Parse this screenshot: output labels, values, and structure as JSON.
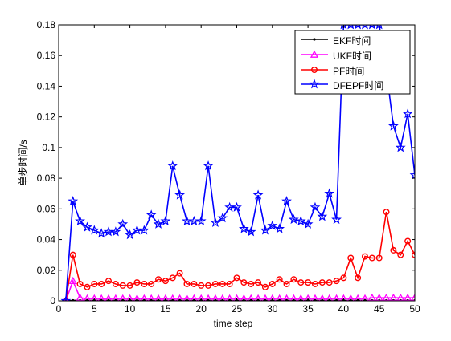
{
  "chart_data": {
    "type": "line",
    "xlabel": "time step",
    "ylabel": "单步时间/s",
    "xlim": [
      0,
      50
    ],
    "ylim": [
      0,
      0.18
    ],
    "xticks": [
      0,
      5,
      10,
      15,
      20,
      25,
      30,
      35,
      40,
      45,
      50
    ],
    "xtick_labels": [
      "0",
      "5",
      "10",
      "15",
      "20",
      "25",
      "30",
      "35",
      "40",
      "45",
      "50"
    ],
    "yticks": [
      0,
      0.02,
      0.04,
      0.06,
      0.08,
      0.1,
      0.12,
      0.14,
      0.16,
      0.18
    ],
    "ytick_labels": [
      "0",
      "0.02",
      "0.04",
      "0.06",
      "0.08",
      "0.1",
      "0.12",
      "0.14",
      "0.16",
      "0.18"
    ],
    "grid": false,
    "legend_position": "top-right",
    "x": [
      1,
      2,
      3,
      4,
      5,
      6,
      7,
      8,
      9,
      10,
      11,
      12,
      13,
      14,
      15,
      16,
      17,
      18,
      19,
      20,
      21,
      22,
      23,
      24,
      25,
      26,
      27,
      28,
      29,
      30,
      31,
      32,
      33,
      34,
      35,
      36,
      37,
      38,
      39,
      40,
      41,
      42,
      43,
      44,
      45,
      46,
      47,
      48,
      49,
      50
    ],
    "series": [
      {
        "name": "EKF时间",
        "color": "#000000",
        "marker": "point",
        "values": [
          0,
          0.0003,
          0.0003,
          0.0003,
          0.0003,
          0.0003,
          0.0003,
          0.0003,
          0.0003,
          0.0003,
          0.0003,
          0.0003,
          0.0003,
          0.0003,
          0.0003,
          0.0003,
          0.0003,
          0.0003,
          0.0003,
          0.0003,
          0.0003,
          0.0003,
          0.0003,
          0.0003,
          0.0003,
          0.0003,
          0.0003,
          0.0003,
          0.0003,
          0.0003,
          0.0003,
          0.0003,
          0.0003,
          0.0003,
          0.0003,
          0.0003,
          0.0003,
          0.0003,
          0.0003,
          0.0003,
          0.0003,
          0.0003,
          0.0003,
          0.0003,
          0.0003,
          0.0003,
          0.0003,
          0.0003,
          0.0003,
          0.0003
        ]
      },
      {
        "name": "UKF时间",
        "color": "#ff00ff",
        "marker": "triangle",
        "values": [
          0,
          0.013,
          0.002,
          0.0015,
          0.0015,
          0.0015,
          0.0015,
          0.0015,
          0.0015,
          0.0015,
          0.0015,
          0.0015,
          0.0015,
          0.0015,
          0.0015,
          0.0015,
          0.0015,
          0.0015,
          0.0015,
          0.0015,
          0.0015,
          0.0015,
          0.0015,
          0.0015,
          0.0015,
          0.0015,
          0.0015,
          0.0015,
          0.0015,
          0.0015,
          0.0015,
          0.0015,
          0.0015,
          0.0015,
          0.0015,
          0.0015,
          0.0015,
          0.0015,
          0.0015,
          0.0015,
          0.0015,
          0.0015,
          0.0015,
          0.002,
          0.002,
          0.002,
          0.002,
          0.002,
          0.002,
          0.002
        ]
      },
      {
        "name": "PF时间",
        "color": "#ff0000",
        "marker": "circle",
        "values": [
          0,
          0.03,
          0.011,
          0.009,
          0.011,
          0.011,
          0.013,
          0.011,
          0.01,
          0.01,
          0.012,
          0.011,
          0.011,
          0.014,
          0.013,
          0.015,
          0.018,
          0.011,
          0.011,
          0.01,
          0.01,
          0.011,
          0.011,
          0.011,
          0.015,
          0.012,
          0.011,
          0.012,
          0.009,
          0.011,
          0.014,
          0.011,
          0.014,
          0.012,
          0.012,
          0.011,
          0.012,
          0.012,
          0.013,
          0.015,
          0.028,
          0.015,
          0.029,
          0.028,
          0.028,
          0.058,
          0.033,
          0.03,
          0.039,
          0.03
        ]
      },
      {
        "name": "DFEPF时间",
        "color": "#0000ff",
        "marker": "star",
        "values": [
          0,
          0.065,
          0.052,
          0.048,
          0.046,
          0.044,
          0.045,
          0.045,
          0.05,
          0.043,
          0.046,
          0.046,
          0.056,
          0.05,
          0.052,
          0.088,
          0.069,
          0.052,
          0.052,
          0.052,
          0.088,
          0.051,
          0.054,
          0.061,
          0.061,
          0.047,
          0.045,
          0.069,
          0.046,
          0.049,
          0.047,
          0.065,
          0.053,
          0.052,
          0.05,
          0.061,
          0.055,
          0.07,
          0.053,
          0.18,
          0.18,
          0.18,
          0.18,
          0.18,
          0.18,
          0.15,
          0.114,
          0.1,
          0.122,
          0.082
        ]
      }
    ]
  }
}
